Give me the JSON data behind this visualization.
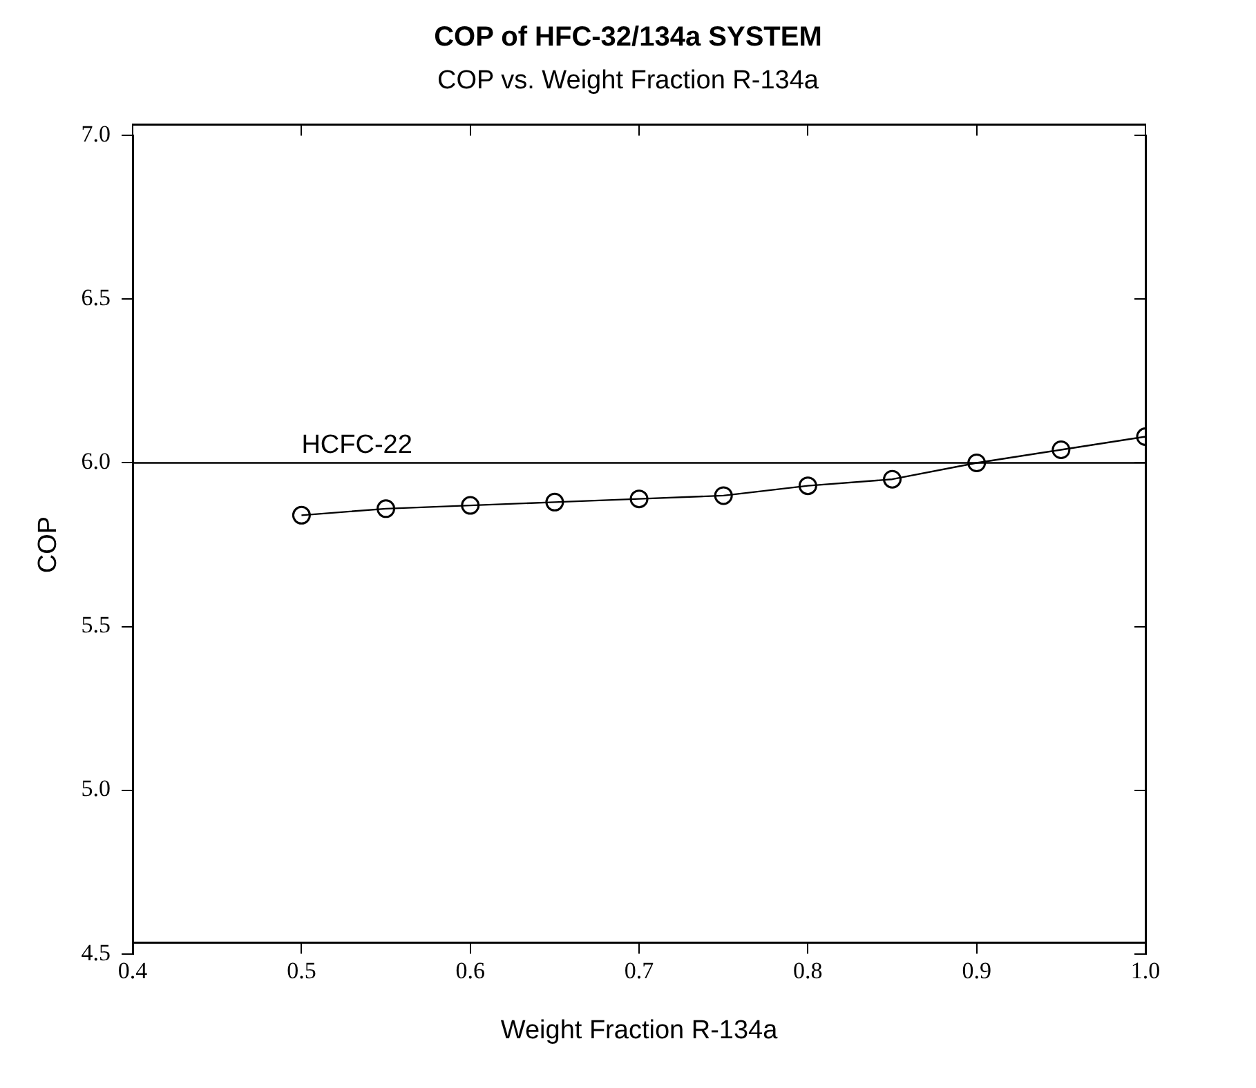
{
  "chart_data": {
    "type": "line",
    "title": "COP of HFC-32/134a SYSTEM",
    "subtitle": "COP vs. Weight Fraction R-134a",
    "xlabel": "Weight Fraction R-134a",
    "ylabel": "COP",
    "x": [
      0.5,
      0.55,
      0.6,
      0.65,
      0.7,
      0.75,
      0.8,
      0.85,
      0.9,
      0.95,
      1.0
    ],
    "series": [
      {
        "color": "#000000",
        "values": [
          5.84,
          5.86,
          5.87,
          5.88,
          5.89,
          5.9,
          5.93,
          5.95,
          6.0,
          6.04,
          6.08
        ]
      }
    ],
    "xlim": [
      0.4,
      1.0
    ],
    "xticks": [
      {
        "value": 0.4,
        "label": "0.4"
      },
      {
        "value": 0.5,
        "label": "0.5"
      },
      {
        "value": 0.6,
        "label": "0.6"
      },
      {
        "value": 0.7,
        "label": "0.7"
      },
      {
        "value": 0.8,
        "label": "0.8"
      },
      {
        "value": 0.9,
        "label": "0.9"
      },
      {
        "value": 1.0,
        "label": "1.0"
      }
    ],
    "ylim": [
      4.5,
      7.0
    ],
    "yticks": [
      {
        "value": 4.5,
        "label": "4.5"
      },
      {
        "value": 5.0,
        "label": "5.0"
      },
      {
        "value": 5.5,
        "label": "5.5"
      },
      {
        "value": 6.0,
        "label": "6.0"
      },
      {
        "value": 6.5,
        "label": "6.5"
      },
      {
        "value": 7.0,
        "label": "7.0"
      }
    ],
    "ref_lines": [
      {
        "axis": "y",
        "value": 6.0,
        "label": "HCFC-22",
        "color": "#000000"
      }
    ],
    "marker": "circle",
    "line_style": "solid",
    "grid": false,
    "legend": false
  }
}
